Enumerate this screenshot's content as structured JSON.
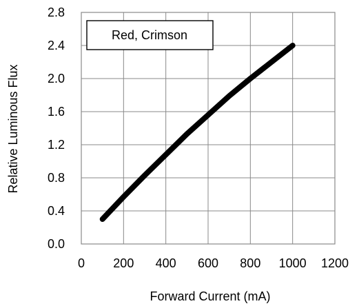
{
  "chart_data": {
    "type": "line",
    "xlabel": "Forward Current (mA)",
    "ylabel": "Relative Luminous Flux",
    "xlim": [
      0,
      1200
    ],
    "ylim": [
      0.0,
      2.8
    ],
    "x_ticks": [
      "0",
      "200",
      "400",
      "600",
      "800",
      "1000",
      "1200"
    ],
    "y_ticks": [
      "0.0",
      "0.4",
      "0.8",
      "1.2",
      "1.6",
      "2.0",
      "2.4",
      "2.8"
    ],
    "grid": true,
    "legend_position": "top-left",
    "series": [
      {
        "name": "Red, Crimson",
        "color": "#000000",
        "x": [
          100,
          200,
          300,
          400,
          500,
          600,
          700,
          800,
          900,
          1000
        ],
        "y": [
          0.3,
          0.57,
          0.83,
          1.08,
          1.33,
          1.56,
          1.79,
          2.0,
          2.2,
          2.4
        ]
      }
    ]
  }
}
